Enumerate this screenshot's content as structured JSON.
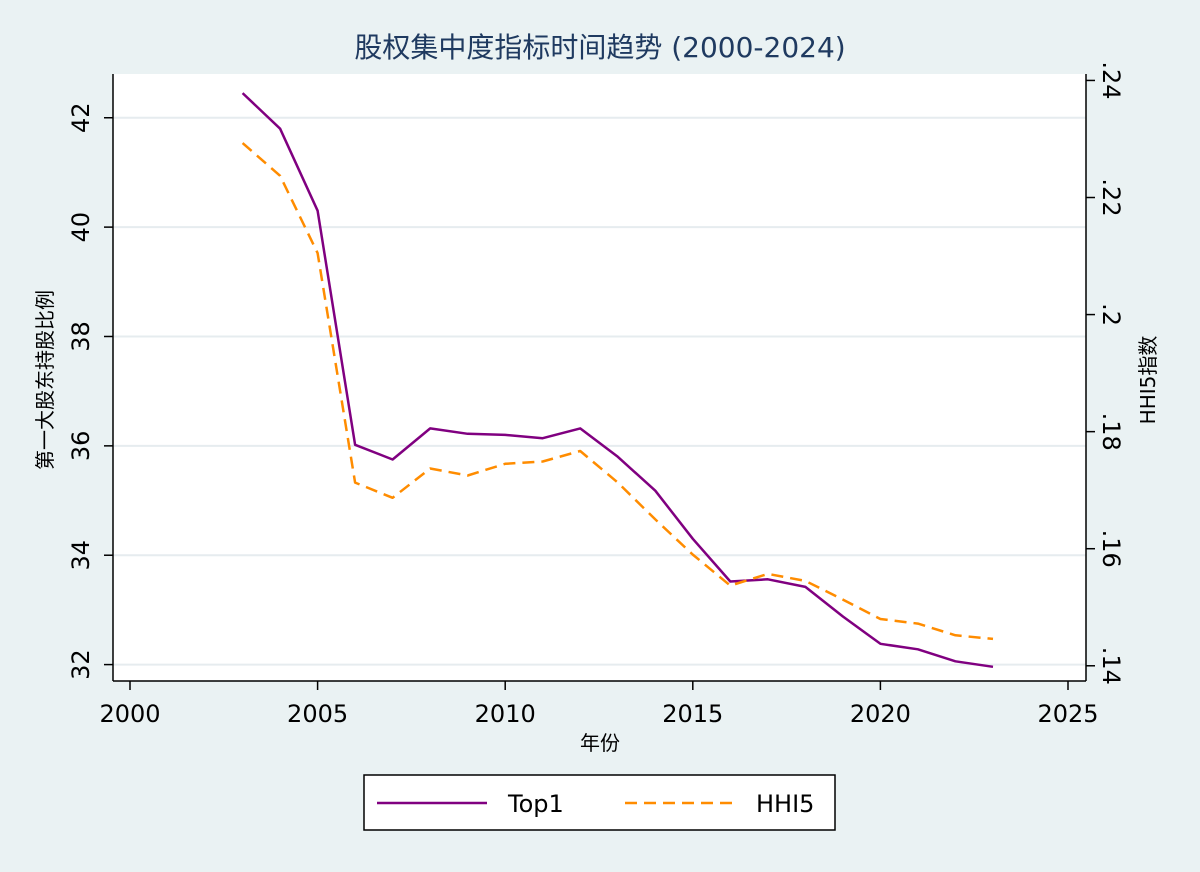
{
  "chart_data": {
    "type": "line",
    "title": "股权集中度指标时间趋势 (2000-2024)",
    "xlabel": "年份",
    "ylabel_left": "第一大股东持股比例",
    "ylabel_right": "HHI5指数",
    "x": [
      2003,
      2004,
      2005,
      2006,
      2007,
      2008,
      2009,
      2010,
      2011,
      2012,
      2013,
      2014,
      2015,
      2016,
      2017,
      2018,
      2019,
      2020,
      2021,
      2022,
      2023
    ],
    "series": [
      {
        "name": "Top1",
        "axis": "left",
        "color": "#800080",
        "style": "solid",
        "values": [
          42.45,
          41.8,
          40.3,
          36.02,
          35.75,
          36.32,
          36.22,
          36.2,
          36.14,
          36.32,
          35.8,
          35.18,
          34.3,
          33.52,
          33.56,
          33.42,
          32.88,
          32.38,
          32.28,
          32.06,
          31.96
        ]
      },
      {
        "name": "HHI5",
        "axis": "right",
        "color": "#ff8c00",
        "style": "dashed",
        "values": [
          0.2293,
          0.2237,
          0.2105,
          0.1713,
          0.1687,
          0.1737,
          0.1725,
          0.1745,
          0.1749,
          0.1767,
          0.1713,
          0.165,
          0.159,
          0.1537,
          0.1557,
          0.1545,
          0.1513,
          0.148,
          0.1472,
          0.1452,
          0.1446
        ]
      }
    ],
    "xticks": [
      2000,
      2005,
      2010,
      2015,
      2020,
      2025
    ],
    "xtick_labels": [
      "2000",
      "2005",
      "2010",
      "2015",
      "2020",
      "2025"
    ],
    "yticks_left": [
      32,
      34,
      36,
      38,
      40,
      42
    ],
    "ytick_labels_left": [
      "32",
      "34",
      "36",
      "38",
      "40",
      "42"
    ],
    "yticks_right": [
      0.14,
      0.16,
      0.18,
      0.2,
      0.22,
      0.24
    ],
    "ytick_labels_right": [
      ".14",
      ".16",
      ".18",
      ".2",
      ".22",
      ".24"
    ],
    "xlim": [
      2000,
      2025
    ],
    "ylim_left": [
      31.7,
      42.8
    ],
    "ylim_right": [
      0.1374,
      0.2411
    ],
    "grid": true,
    "legend_position": "bottom"
  }
}
